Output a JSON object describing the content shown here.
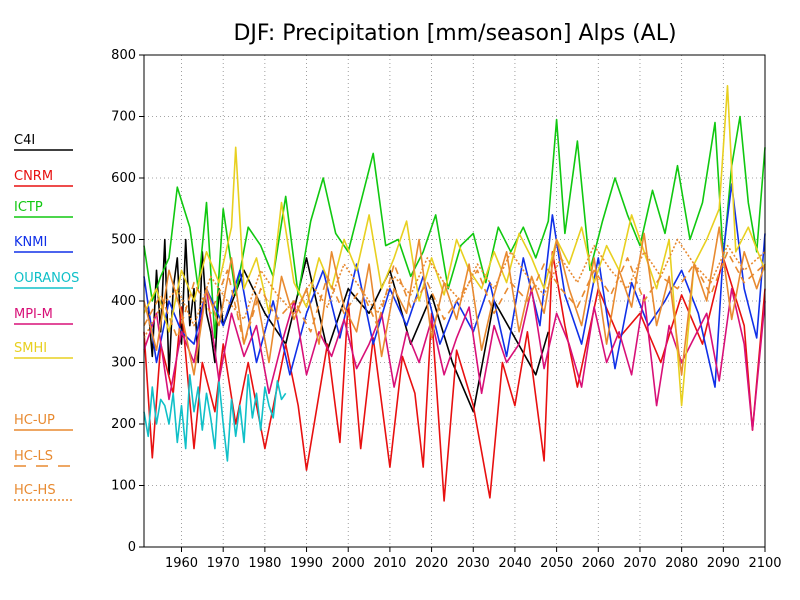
{
  "chart_data": {
    "type": "line",
    "title": "DJF: Precipitation [mm/season] Alps (AL)",
    "xlabel": "",
    "ylabel": "",
    "xlim": [
      1951,
      2100
    ],
    "ylim": [
      0,
      800
    ],
    "x_ticks": [
      1960,
      1970,
      1980,
      1990,
      2000,
      2010,
      2020,
      2030,
      2040,
      2050,
      2060,
      2070,
      2080,
      2090,
      2100
    ],
    "y_ticks": [
      0,
      100,
      200,
      300,
      400,
      500,
      600,
      700,
      800
    ],
    "grid": true,
    "legend_position": "left",
    "series": [
      {
        "name": "C4I",
        "color": "#000000",
        "dash": "solid",
        "x": [
          1952,
          1953,
          1954,
          1955,
          1956,
          1957,
          1958,
          1959,
          1960,
          1961,
          1962,
          1963,
          1964,
          1965,
          1966,
          1967,
          1968,
          1969,
          1970,
          1975,
          1980,
          1985,
          1990,
          1995,
          2000,
          2005,
          2010,
          2015,
          2020,
          2025,
          2030,
          2035,
          2040,
          2045,
          2048
        ],
        "y": [
          390,
          310,
          450,
          350,
          500,
          280,
          420,
          470,
          330,
          500,
          360,
          420,
          300,
          480,
          380,
          350,
          300,
          420,
          360,
          450,
          380,
          330,
          470,
          320,
          420,
          380,
          450,
          330,
          410,
          300,
          220,
          400,
          340,
          280,
          350
        ]
      },
      {
        "name": "CNRM",
        "color": "#e81010",
        "dash": "solid",
        "x": [
          1951,
          1953,
          1955,
          1958,
          1960,
          1963,
          1965,
          1968,
          1970,
          1973,
          1976,
          1980,
          1985,
          1988,
          1990,
          1995,
          1998,
          2000,
          2003,
          2006,
          2010,
          2013,
          2016,
          2018,
          2020,
          2023,
          2026,
          2030,
          2034,
          2037,
          2040,
          2043,
          2047,
          2049,
          2052,
          2055,
          2060,
          2065,
          2070,
          2075,
          2080,
          2085,
          2090,
          2095,
          2097,
          2100
        ],
        "y": [
          350,
          145,
          330,
          250,
          390,
          160,
          300,
          220,
          330,
          200,
          300,
          160,
          330,
          230,
          125,
          330,
          170,
          400,
          160,
          340,
          130,
          310,
          250,
          130,
          380,
          75,
          320,
          230,
          80,
          300,
          230,
          350,
          140,
          480,
          360,
          260,
          420,
          340,
          380,
          300,
          410,
          330,
          470,
          360,
          190,
          420
        ]
      },
      {
        "name": "ICTP",
        "color": "#10c810",
        "dash": "solid",
        "x": [
          1951,
          1953,
          1955,
          1957,
          1959,
          1962,
          1964,
          1966,
          1968,
          1970,
          1973,
          1976,
          1979,
          1982,
          1985,
          1988,
          1991,
          1994,
          1997,
          2000,
          2003,
          2006,
          2009,
          2012,
          2015,
          2018,
          2021,
          2024,
          2027,
          2030,
          2033,
          2036,
          2039,
          2042,
          2045,
          2048,
          2050,
          2052,
          2055,
          2058,
          2061,
          2064,
          2067,
          2070,
          2073,
          2076,
          2079,
          2082,
          2085,
          2088,
          2090,
          2092,
          2094,
          2096,
          2098,
          2100
        ],
        "y": [
          490,
          400,
          440,
          470,
          585,
          520,
          420,
          560,
          340,
          550,
          410,
          520,
          490,
          440,
          570,
          410,
          530,
          600,
          510,
          480,
          560,
          640,
          490,
          500,
          440,
          480,
          540,
          420,
          490,
          510,
          430,
          520,
          480,
          520,
          470,
          530,
          695,
          510,
          660,
          450,
          530,
          600,
          540,
          490,
          580,
          510,
          620,
          500,
          560,
          690,
          470,
          620,
          700,
          560,
          480,
          650
        ]
      },
      {
        "name": "KNMI",
        "color": "#1030e8",
        "dash": "solid",
        "x": [
          1951,
          1954,
          1957,
          1960,
          1963,
          1966,
          1970,
          1974,
          1978,
          1982,
          1986,
          1990,
          1994,
          1998,
          2002,
          2006,
          2010,
          2014,
          2018,
          2022,
          2026,
          2030,
          2034,
          2038,
          2042,
          2046,
          2049,
          2052,
          2056,
          2060,
          2064,
          2068,
          2072,
          2076,
          2080,
          2084,
          2088,
          2090,
          2092,
          2095,
          2098,
          2100
        ],
        "y": [
          440,
          300,
          400,
          350,
          330,
          420,
          360,
          450,
          300,
          400,
          280,
          380,
          450,
          340,
          460,
          330,
          420,
          360,
          440,
          330,
          400,
          350,
          430,
          310,
          470,
          360,
          540,
          410,
          330,
          470,
          290,
          430,
          360,
          400,
          450,
          380,
          260,
          480,
          590,
          420,
          340,
          510
        ]
      },
      {
        "name": "OURANOS",
        "color": "#10c0c8",
        "dash": "solid",
        "x": [
          1951,
          1952,
          1953,
          1954,
          1955,
          1956,
          1957,
          1958,
          1959,
          1960,
          1961,
          1962,
          1963,
          1964,
          1965,
          1966,
          1967,
          1968,
          1969,
          1970,
          1971,
          1972,
          1973,
          1974,
          1975,
          1976,
          1977,
          1978,
          1979,
          1980,
          1981,
          1982,
          1983,
          1984,
          1985
        ],
        "y": [
          220,
          180,
          260,
          200,
          240,
          230,
          200,
          250,
          170,
          230,
          160,
          280,
          220,
          260,
          190,
          250,
          210,
          160,
          270,
          200,
          140,
          240,
          180,
          230,
          170,
          280,
          210,
          250,
          190,
          260,
          230,
          210,
          270,
          240,
          250
        ]
      },
      {
        "name": "MPI-M",
        "color": "#d81078",
        "dash": "solid",
        "x": [
          1951,
          1954,
          1957,
          1960,
          1963,
          1966,
          1969,
          1972,
          1975,
          1978,
          1981,
          1984,
          1987,
          1990,
          1993,
          1996,
          1999,
          2002,
          2005,
          2008,
          2011,
          2014,
          2017,
          2020,
          2023,
          2026,
          2029,
          2032,
          2035,
          2038,
          2041,
          2044,
          2047,
          2050,
          2053,
          2056,
          2059,
          2062,
          2065,
          2068,
          2071,
          2074,
          2077,
          2080,
          2083,
          2086,
          2089,
          2092,
          2095,
          2097,
          2100
        ],
        "y": [
          320,
          380,
          240,
          350,
          300,
          420,
          270,
          380,
          310,
          360,
          250,
          330,
          400,
          280,
          350,
          310,
          370,
          290,
          330,
          380,
          260,
          350,
          300,
          370,
          280,
          340,
          390,
          250,
          360,
          300,
          330,
          420,
          290,
          380,
          330,
          260,
          390,
          300,
          350,
          280,
          410,
          230,
          360,
          300,
          340,
          380,
          270,
          420,
          330,
          190,
          400
        ]
      },
      {
        "name": "SMHI",
        "color": "#e8d020",
        "dash": "solid",
        "x": [
          1951,
          1954,
          1957,
          1960,
          1963,
          1966,
          1969,
          1972,
          1973,
          1975,
          1978,
          1981,
          1984,
          1987,
          1990,
          1993,
          1996,
          1999,
          2002,
          2005,
          2008,
          2011,
          2014,
          2017,
          2020,
          2023,
          2026,
          2029,
          2032,
          2035,
          2038,
          2041,
          2044,
          2047,
          2050,
          2053,
          2056,
          2059,
          2062,
          2065,
          2068,
          2071,
          2074,
          2077,
          2080,
          2083,
          2086,
          2089,
          2091,
          2093,
          2096,
          2100
        ],
        "y": [
          380,
          420,
          350,
          450,
          400,
          480,
          430,
          520,
          650,
          420,
          470,
          380,
          560,
          430,
          390,
          470,
          420,
          500,
          450,
          540,
          420,
          470,
          530,
          400,
          470,
          410,
          500,
          450,
          420,
          480,
          430,
          510,
          470,
          420,
          500,
          460,
          520,
          430,
          490,
          450,
          540,
          480,
          420,
          500,
          230,
          460,
          500,
          550,
          750,
          480,
          520,
          450
        ]
      },
      {
        "name": "HC-UP",
        "color": "#e88a30",
        "dash": "solid",
        "x": [
          1951,
          1954,
          1957,
          1960,
          1963,
          1966,
          1969,
          1972,
          1975,
          1978,
          1981,
          1984,
          1987,
          1990,
          1993,
          1996,
          1999,
          2002,
          2005,
          2008,
          2011,
          2014,
          2017,
          2020,
          2023,
          2026,
          2029,
          2032,
          2035,
          2038,
          2041,
          2044,
          2047,
          2050,
          2053,
          2056,
          2059,
          2062,
          2065,
          2068,
          2071,
          2074,
          2077,
          2080,
          2083,
          2086,
          2089,
          2092,
          2095,
          2098,
          2100
        ],
        "y": [
          400,
          320,
          450,
          380,
          280,
          420,
          360,
          470,
          330,
          410,
          300,
          440,
          370,
          420,
          330,
          480,
          390,
          350,
          460,
          310,
          420,
          380,
          500,
          340,
          430,
          370,
          460,
          320,
          410,
          480,
          350,
          440,
          380,
          500,
          420,
          360,
          470,
          330,
          450,
          390,
          510,
          360,
          440,
          280,
          460,
          400,
          520,
          370,
          480,
          420,
          460
        ]
      },
      {
        "name": "HC-LS",
        "color": "#e88a30",
        "dash": "dashed",
        "x": [
          1951,
          1955,
          1959,
          1963,
          1967,
          1971,
          1975,
          1979,
          1983,
          1987,
          1991,
          1995,
          1999,
          2003,
          2007,
          2011,
          2015,
          2019,
          2023,
          2027,
          2031,
          2035,
          2039,
          2043,
          2047,
          2051,
          2055,
          2059,
          2063,
          2067,
          2071,
          2075,
          2079,
          2083,
          2087,
          2091,
          2095,
          2100
        ],
        "y": [
          360,
          410,
          340,
          430,
          380,
          450,
          330,
          420,
          370,
          400,
          350,
          440,
          380,
          420,
          360,
          460,
          390,
          430,
          370,
          410,
          450,
          380,
          430,
          400,
          460,
          420,
          390,
          450,
          410,
          470,
          400,
          440,
          420,
          460,
          410,
          480,
          430,
          460
        ]
      },
      {
        "name": "HC-HS",
        "color": "#e88a30",
        "dash": "dotted",
        "x": [
          1951,
          1955,
          1959,
          1963,
          1967,
          1971,
          1975,
          1979,
          1983,
          1987,
          1991,
          1995,
          1999,
          2003,
          2007,
          2011,
          2015,
          2019,
          2023,
          2027,
          2031,
          2035,
          2039,
          2043,
          2047,
          2051,
          2055,
          2059,
          2063,
          2067,
          2071,
          2075,
          2079,
          2083,
          2087,
          2091,
          2095,
          2100
        ],
        "y": [
          340,
          390,
          420,
          360,
          440,
          400,
          370,
          450,
          410,
          380,
          430,
          390,
          460,
          420,
          380,
          440,
          410,
          470,
          430,
          400,
          460,
          420,
          480,
          440,
          410,
          470,
          430,
          490,
          450,
          420,
          480,
          440,
          500,
          460,
          430,
          490,
          450,
          480
        ]
      }
    ]
  }
}
